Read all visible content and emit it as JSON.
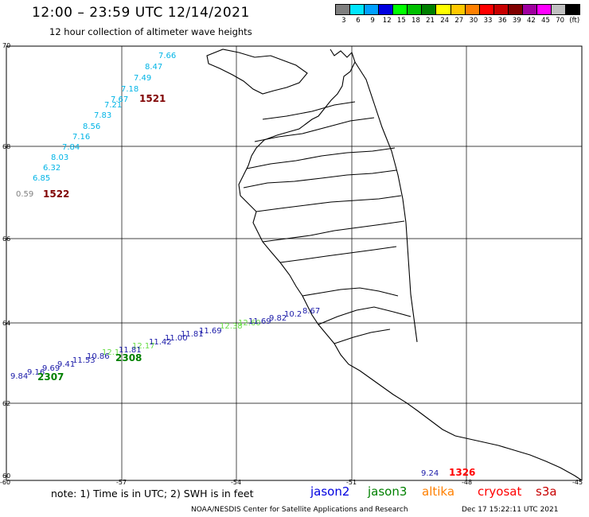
{
  "header": {
    "title": "12:00 – 23:59 UTC 12/14/2021",
    "subtitle": "12 hour collection of altimeter wave heights"
  },
  "colorbar": {
    "colors": [
      "#808080",
      "#00e6ff",
      "#00a0ff",
      "#0000e0",
      "#00ff00",
      "#00c000",
      "#008000",
      "#ffff00",
      "#ffc800",
      "#ff8000",
      "#ff0000",
      "#c80000",
      "#800000",
      "#a000a0",
      "#ff00ff",
      "#c0c0c0",
      "#000000"
    ],
    "labels": [
      "3",
      "6",
      "9",
      "12",
      "15",
      "18",
      "21",
      "24",
      "27",
      "30",
      "33",
      "36",
      "39",
      "42",
      "45",
      "70",
      "(ft)"
    ]
  },
  "axes": {
    "y_ticks": [
      "70",
      "68",
      "66",
      "64",
      "62",
      "60"
    ],
    "x_ticks": [
      "-60",
      "-57",
      "-54",
      "-51",
      "-48",
      "-45"
    ]
  },
  "tracks": [
    {
      "name": "altika",
      "color": "#00b4e6",
      "values": [
        "7.66",
        "8.47",
        "7.49",
        "7.18",
        "7.67",
        "7.21",
        "7.83",
        "8.56",
        "7.16",
        "7.84",
        "8.03",
        "6.32",
        "6.85"
      ]
    },
    {
      "name": "jason3-lightgreen",
      "color": "#66dd44",
      "values": [
        "12.1",
        "12.17",
        "12.38",
        "12.60"
      ]
    },
    {
      "name": "jason2",
      "color": "#1a1aa8",
      "values": [
        "9.84",
        "9.16",
        "9.69",
        "9.41",
        "11.53",
        "10.86",
        "11.81",
        "11.42",
        "11.00",
        "11.81",
        "11.69",
        "11.69",
        "9.82",
        "10.2",
        "8.67"
      ]
    },
    {
      "name": "gray",
      "color": "#808080",
      "values": [
        "0.59"
      ]
    },
    {
      "name": "cryosat-blue",
      "color": "#1a1aa8",
      "values": [
        "9.24"
      ]
    }
  ],
  "pass_labels": [
    {
      "text": "1521",
      "color": "#800000"
    },
    {
      "text": "1522",
      "color": "#800000"
    },
    {
      "text": "2308",
      "color": "#008000"
    },
    {
      "text": "2307",
      "color": "#008000"
    },
    {
      "text": "1326",
      "color": "#ff0000"
    }
  ],
  "footer": {
    "note": "note: 1) Time is in UTC; 2) SWH is in feet",
    "satellites": [
      {
        "name": "jason2",
        "color": "#0000e0"
      },
      {
        "name": "jason3",
        "color": "#008000"
      },
      {
        "name": "altika",
        "color": "#ff8000"
      },
      {
        "name": "cryosat",
        "color": "#ff0000"
      },
      {
        "name": "s3a",
        "color": "#c80000"
      }
    ],
    "credit": "NOAA/NESDIS Center for Satellite Applications and Research",
    "timestamp": "Dec 17 15:22:11 UTC 2021"
  }
}
